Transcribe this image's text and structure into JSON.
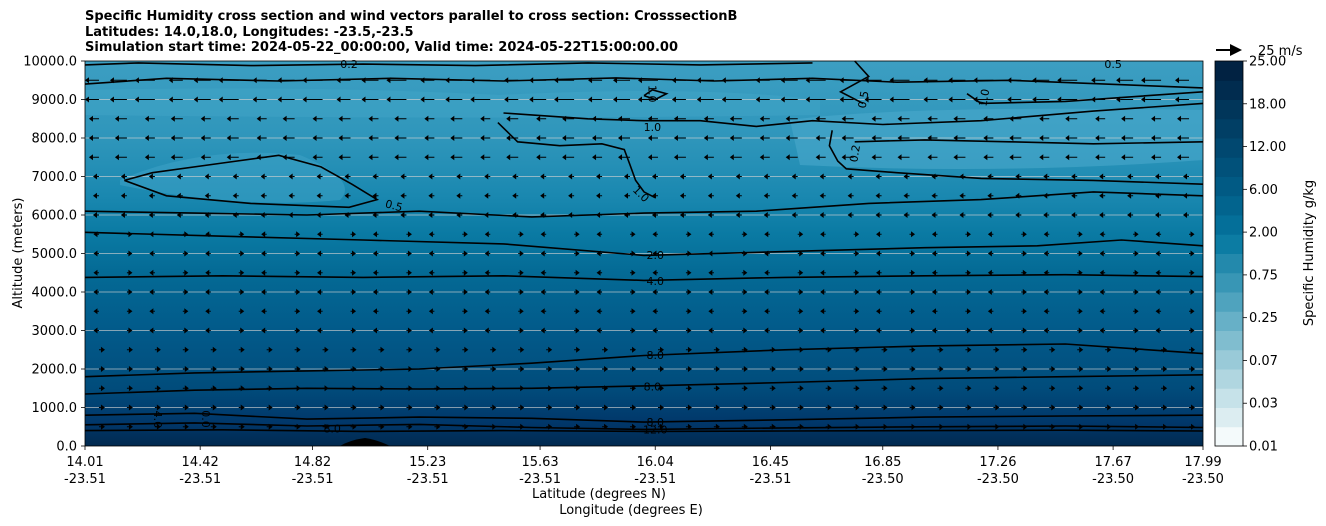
{
  "title_lines": [
    "Specific Humidity cross section and wind vectors parallel to cross section: CrosssectionB",
    "Latitudes: 14.0,18.0, Longitudes: -23.5,-23.5",
    "Simulation start time: 2024-05-22_00:00:00, Valid time: 2024-05-22T15:00:00.00"
  ],
  "chart_data": {
    "type": "heatmap",
    "xlabel_lat": "Latitude (degrees N)",
    "xlabel_lon": "Longitude (degrees E)",
    "ylabel": "Altitude (meters)",
    "ylim": [
      0,
      10000
    ],
    "xlim": [
      14.01,
      17.99
    ],
    "yticks": [
      "0.0",
      "1000.0",
      "2000.0",
      "3000.0",
      "4000.0",
      "5000.0",
      "6000.0",
      "7000.0",
      "8000.0",
      "9000.0",
      "10000.0"
    ],
    "yvalues": [
      0,
      1000,
      2000,
      3000,
      4000,
      5000,
      6000,
      7000,
      8000,
      9000,
      10000
    ],
    "xticks_lat": [
      "14.01",
      "14.42",
      "14.82",
      "15.23",
      "15.63",
      "16.04",
      "16.45",
      "16.85",
      "17.26",
      "17.67",
      "17.99"
    ],
    "xticks_lon": [
      "-23.51",
      "-23.51",
      "-23.51",
      "-23.51",
      "-23.51",
      "-23.51",
      "-23.51",
      "-23.50",
      "-23.50",
      "-23.50",
      "-23.50"
    ],
    "xvalues": [
      14.01,
      14.42,
      14.82,
      15.23,
      15.63,
      16.04,
      16.45,
      16.85,
      17.26,
      17.67,
      17.99
    ],
    "colorbar": {
      "label": "Specific Humidity g/kg",
      "tick_labels": [
        "0.01",
        "0.03",
        "0.07",
        "0.25",
        "0.75",
        "2.00",
        "6.00",
        "12.00",
        "18.00",
        "25.00"
      ],
      "colors": [
        "#f4fafb",
        "#dcedf1",
        "#c6e2e9",
        "#b0d6e0",
        "#99cad8",
        "#80bdcf",
        "#67b0c7",
        "#4fa3be",
        "#3896b5",
        "#2389ac",
        "#0c7ca3",
        "#046f99",
        "#02648e",
        "#015a84",
        "#01517a",
        "#014870",
        "#013f65",
        "#01365a",
        "#012c4f",
        "#012242"
      ]
    },
    "wind_reference": "25 m/s",
    "contour_labels": [
      {
        "text": "0.2",
        "x": 14.95,
        "y": 9920
      },
      {
        "text": "0.5",
        "x": 17.67,
        "y": 9920
      },
      {
        "text": "1.0",
        "x": 16.03,
        "y": 9150,
        "rot": 90
      },
      {
        "text": "1.0",
        "x": 16.03,
        "y": 8280
      },
      {
        "text": "0.5",
        "x": 16.78,
        "y": 9000,
        "rot": -80
      },
      {
        "text": "0.2",
        "x": 16.75,
        "y": 7600,
        "rot": -80
      },
      {
        "text": "1.0",
        "x": 17.21,
        "y": 9050,
        "rot": -80
      },
      {
        "text": "0.5",
        "x": 15.11,
        "y": 6250,
        "rot": 15
      },
      {
        "text": "1.0",
        "x": 15.99,
        "y": 6550,
        "rot": 45
      },
      {
        "text": "2.0",
        "x": 16.04,
        "y": 4960
      },
      {
        "text": "4.0",
        "x": 16.04,
        "y": 4290
      },
      {
        "text": "8.0",
        "x": 16.04,
        "y": 2370
      },
      {
        "text": "8.0",
        "x": 16.03,
        "y": 1540
      },
      {
        "text": "8.0",
        "x": 16.04,
        "y": 620
      },
      {
        "text": "12.0",
        "x": 16.04,
        "y": 430
      },
      {
        "text": "8.0",
        "x": 14.89,
        "y": 450
      },
      {
        "text": "4.0",
        "x": 14.27,
        "y": 690,
        "rot": 90
      },
      {
        "text": "0.0",
        "x": 14.44,
        "y": 700,
        "rot": 90
      }
    ],
    "contour_lines": [
      [
        [
          14.01,
          9900
        ],
        [
          14.2,
          9950
        ],
        [
          14.6,
          9880
        ],
        [
          15.0,
          9920
        ],
        [
          15.4,
          9880
        ],
        [
          15.8,
          9950
        ],
        [
          16.2,
          9900
        ],
        [
          16.6,
          9950
        ]
      ],
      [
        [
          14.01,
          9400
        ],
        [
          14.3,
          9550
        ],
        [
          14.7,
          9480
        ],
        [
          15.1,
          9550
        ],
        [
          15.5,
          9480
        ],
        [
          15.9,
          9560
        ],
        [
          16.25,
          9480
        ],
        [
          16.6,
          9550
        ],
        [
          16.9,
          9450
        ],
        [
          17.3,
          9500
        ],
        [
          17.99,
          9300
        ]
      ],
      [
        [
          15.5,
          8650
        ],
        [
          15.8,
          8500
        ],
        [
          16.0,
          8450
        ],
        [
          16.2,
          8450
        ],
        [
          16.4,
          8300
        ],
        [
          16.6,
          8450
        ],
        [
          16.85,
          8350
        ],
        [
          17.2,
          8450
        ],
        [
          17.6,
          8700
        ],
        [
          17.99,
          8900
        ]
      ],
      [
        [
          15.48,
          8400
        ],
        [
          15.55,
          7900
        ],
        [
          15.7,
          7800
        ],
        [
          15.85,
          7850
        ],
        [
          15.93,
          7700
        ],
        [
          15.95,
          7300
        ],
        [
          15.97,
          6900
        ],
        [
          16.0,
          6600
        ],
        [
          16.04,
          6450
        ]
      ],
      [
        [
          16.0,
          9100
        ],
        [
          16.04,
          9000
        ],
        [
          16.08,
          9150
        ],
        [
          16.03,
          9250
        ],
        [
          16.0,
          9100
        ]
      ],
      [
        [
          16.75,
          10000
        ],
        [
          16.8,
          9600
        ],
        [
          16.7,
          9200
        ],
        [
          16.78,
          8900
        ]
      ],
      [
        [
          16.67,
          8200
        ],
        [
          16.66,
          7800
        ],
        [
          16.69,
          7400
        ],
        [
          16.72,
          7200
        ],
        [
          16.9,
          7100
        ],
        [
          17.2,
          6950
        ],
        [
          17.6,
          6900
        ],
        [
          17.99,
          6800
        ]
      ],
      [
        [
          16.75,
          7900
        ],
        [
          17.0,
          7950
        ],
        [
          17.3,
          7900
        ],
        [
          17.6,
          7850
        ],
        [
          17.99,
          7900
        ]
      ],
      [
        [
          17.15,
          9150
        ],
        [
          17.2,
          8900
        ],
        [
          17.5,
          8950
        ],
        [
          17.99,
          9200
        ]
      ],
      [
        [
          14.15,
          6900
        ],
        [
          14.25,
          7100
        ],
        [
          14.5,
          7350
        ],
        [
          14.7,
          7550
        ],
        [
          14.85,
          7250
        ],
        [
          14.96,
          6800
        ],
        [
          15.05,
          6400
        ],
        [
          14.95,
          6200
        ],
        [
          14.6,
          6300
        ],
        [
          14.3,
          6500
        ],
        [
          14.15,
          6900
        ]
      ],
      [
        [
          14.01,
          6100
        ],
        [
          14.4,
          6050
        ],
        [
          14.8,
          6000
        ],
        [
          15.2,
          6100
        ],
        [
          15.6,
          5950
        ],
        [
          16.0,
          6050
        ],
        [
          16.4,
          6100
        ],
        [
          16.8,
          6300
        ],
        [
          17.2,
          6400
        ],
        [
          17.6,
          6600
        ],
        [
          17.99,
          6500
        ]
      ],
      [
        [
          14.01,
          5550
        ],
        [
          14.5,
          5450
        ],
        [
          15.0,
          5350
        ],
        [
          15.5,
          5250
        ],
        [
          16.0,
          4950
        ],
        [
          16.5,
          5050
        ],
        [
          17.0,
          5150
        ],
        [
          17.4,
          5200
        ],
        [
          17.7,
          5350
        ],
        [
          17.99,
          5200
        ]
      ],
      [
        [
          14.01,
          4380
        ],
        [
          14.5,
          4420
        ],
        [
          15.0,
          4380
        ],
        [
          15.5,
          4420
        ],
        [
          16.0,
          4300
        ],
        [
          16.5,
          4380
        ],
        [
          17.0,
          4420
        ],
        [
          17.5,
          4450
        ],
        [
          17.99,
          4400
        ]
      ],
      [
        [
          14.01,
          1800
        ],
        [
          14.4,
          1900
        ],
        [
          14.8,
          1950
        ],
        [
          15.2,
          2000
        ],
        [
          15.6,
          2150
        ],
        [
          16.0,
          2350
        ],
        [
          16.5,
          2500
        ],
        [
          17.0,
          2600
        ],
        [
          17.5,
          2650
        ],
        [
          17.99,
          2400
        ]
      ],
      [
        [
          14.01,
          1350
        ],
        [
          14.4,
          1450
        ],
        [
          14.8,
          1500
        ],
        [
          15.2,
          1480
        ],
        [
          15.6,
          1500
        ],
        [
          16.0,
          1560
        ],
        [
          16.5,
          1650
        ],
        [
          17.0,
          1750
        ],
        [
          17.5,
          1800
        ],
        [
          17.99,
          1850
        ]
      ],
      [
        [
          14.01,
          800
        ],
        [
          14.4,
          850
        ],
        [
          14.8,
          700
        ],
        [
          15.2,
          750
        ],
        [
          15.6,
          720
        ],
        [
          16.0,
          620
        ],
        [
          16.5,
          680
        ],
        [
          17.0,
          750
        ],
        [
          17.5,
          780
        ],
        [
          17.99,
          800
        ]
      ],
      [
        [
          14.01,
          550
        ],
        [
          14.4,
          600
        ],
        [
          14.8,
          520
        ],
        [
          15.2,
          560
        ],
        [
          15.6,
          480
        ],
        [
          16.0,
          430
        ],
        [
          16.5,
          470
        ],
        [
          17.0,
          500
        ],
        [
          17.5,
          520
        ],
        [
          17.99,
          480
        ]
      ],
      [
        [
          14.01,
          400
        ],
        [
          14.5,
          420
        ],
        [
          15.0,
          380
        ],
        [
          15.5,
          400
        ],
        [
          16.0,
          380
        ],
        [
          16.5,
          390
        ],
        [
          17.0,
          400
        ],
        [
          17.5,
          410
        ],
        [
          17.99,
          390
        ]
      ]
    ]
  }
}
